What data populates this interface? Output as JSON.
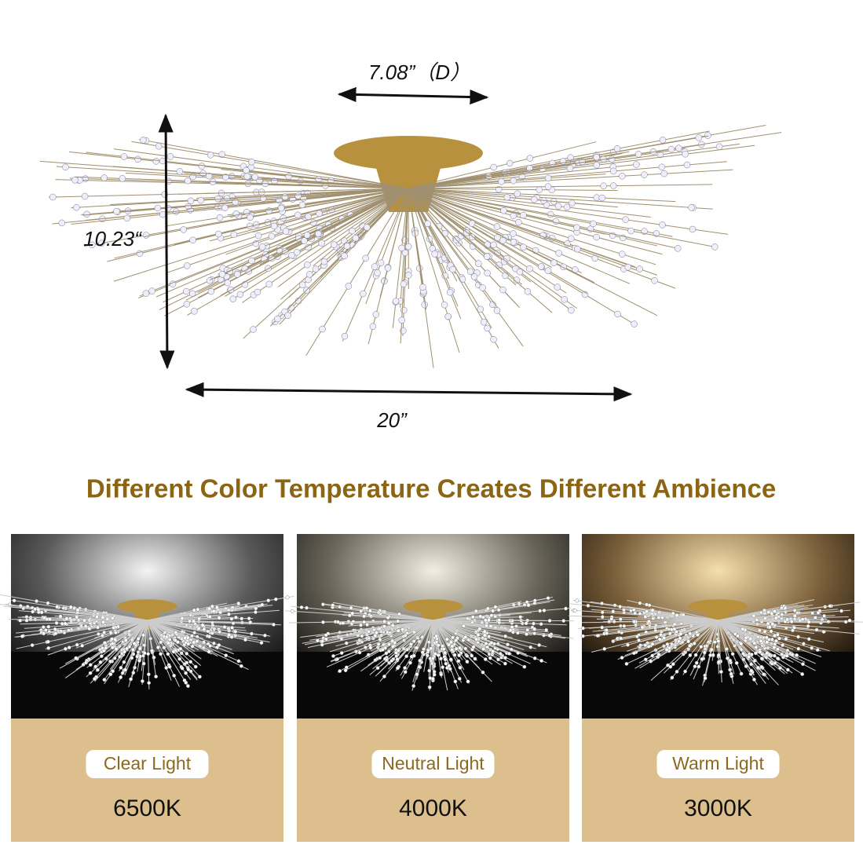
{
  "dimensions": {
    "diameter": "7.08”（D）",
    "height": "10.23“",
    "width": "20”"
  },
  "heading": "Different Color Temperature Creates Different Ambience",
  "panels": [
    {
      "label": "Clear Light",
      "temperature": "6500K"
    },
    {
      "label": "Neutral Light",
      "temperature": "4000K"
    },
    {
      "label": "Warm Light",
      "temperature": "3000K"
    }
  ]
}
